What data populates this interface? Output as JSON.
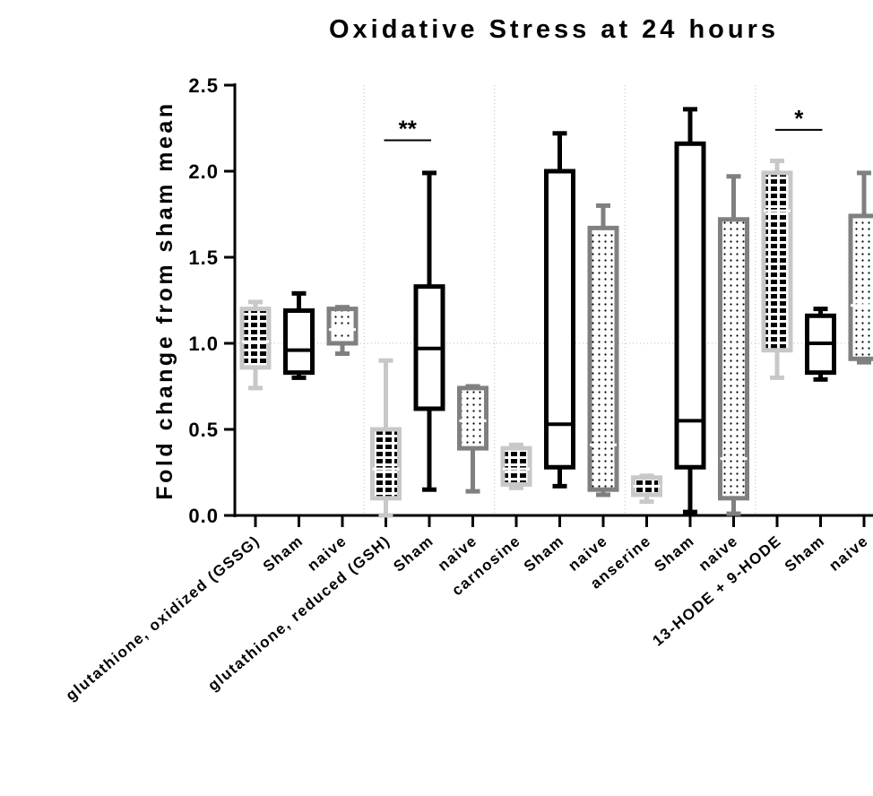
{
  "chart_data": {
    "type": "box",
    "title": "Oxidative Stress at 24 hours",
    "y_label": "Fold change from sham mean",
    "categories": [
      "glutathione, oxidized (GSSG)",
      "Sham",
      "naive",
      "glutathione, reduced (GSH)",
      "Sham",
      "naive",
      "carnosine",
      "Sham",
      "naive",
      "anserine",
      "Sham",
      "naive",
      "13-HODE + 9-HODE",
      "Sham",
      "naive"
    ],
    "boxes": [
      {
        "min": 0.74,
        "q1": 0.86,
        "median": 1.01,
        "q3": 1.2,
        "max": 1.24
      },
      {
        "min": 0.8,
        "q1": 0.83,
        "median": 0.96,
        "q3": 1.19,
        "max": 1.29
      },
      {
        "min": 0.94,
        "q1": 1.0,
        "median": 1.08,
        "q3": 1.2,
        "max": 1.21
      },
      {
        "min": 0.0,
        "q1": 0.1,
        "median": 0.27,
        "q3": 0.5,
        "max": 0.9
      },
      {
        "min": 0.15,
        "q1": 0.62,
        "median": 0.97,
        "q3": 1.33,
        "max": 1.99
      },
      {
        "min": 0.14,
        "q1": 0.39,
        "median": 0.55,
        "q3": 0.74,
        "max": 0.75
      },
      {
        "min": 0.16,
        "q1": 0.18,
        "median": 0.27,
        "q3": 0.39,
        "max": 0.41
      },
      {
        "min": 0.17,
        "q1": 0.28,
        "median": 0.53,
        "q3": 2.0,
        "max": 2.22
      },
      {
        "min": 0.12,
        "q1": 0.15,
        "median": 0.41,
        "q3": 1.67,
        "max": 1.8
      },
      {
        "min": 0.08,
        "q1": 0.12,
        "median": 0.17,
        "q3": 0.22,
        "max": 0.23
      },
      {
        "min": 0.02,
        "q1": 0.28,
        "median": 0.55,
        "q3": 2.16,
        "max": 2.36
      },
      {
        "min": 0.01,
        "q1": 0.1,
        "median": 0.33,
        "q3": 1.72,
        "max": 1.97
      },
      {
        "min": 0.8,
        "q1": 0.96,
        "median": 1.77,
        "q3": 1.99,
        "max": 2.06
      },
      {
        "min": 0.79,
        "q1": 0.83,
        "median": 1.0,
        "q3": 1.16,
        "max": 1.2
      },
      {
        "min": 0.89,
        "q1": 0.91,
        "median": 1.22,
        "q3": 1.74,
        "max": 1.99
      }
    ],
    "styles": [
      "brick",
      "open",
      "dots",
      "brick",
      "open",
      "dots",
      "brick",
      "open",
      "dots",
      "brick",
      "open",
      "dots",
      "brick",
      "open",
      "dots"
    ],
    "colors": [
      "#c8c8c8",
      "#000000",
      "#808080",
      "#c8c8c8",
      "#000000",
      "#808080",
      "#c8c8c8",
      "#000000",
      "#808080",
      "#c8c8c8",
      "#000000",
      "#808080",
      "#c8c8c8",
      "#000000",
      "#808080"
    ],
    "ylim": [
      0,
      2.5
    ],
    "yticks": [
      {
        "value": 0,
        "label": "0.0"
      },
      0.5,
      {
        "value": 1,
        "label": "1.0"
      },
      1.5,
      {
        "value": 2,
        "label": "2.0"
      },
      2.5
    ],
    "reference_line": 1,
    "annotations": [
      {
        "text": "**",
        "between": [
          3,
          4
        ],
        "y": 2.18
      },
      {
        "text": "*",
        "between": [
          12,
          13
        ],
        "y": 2.24
      }
    ]
  }
}
